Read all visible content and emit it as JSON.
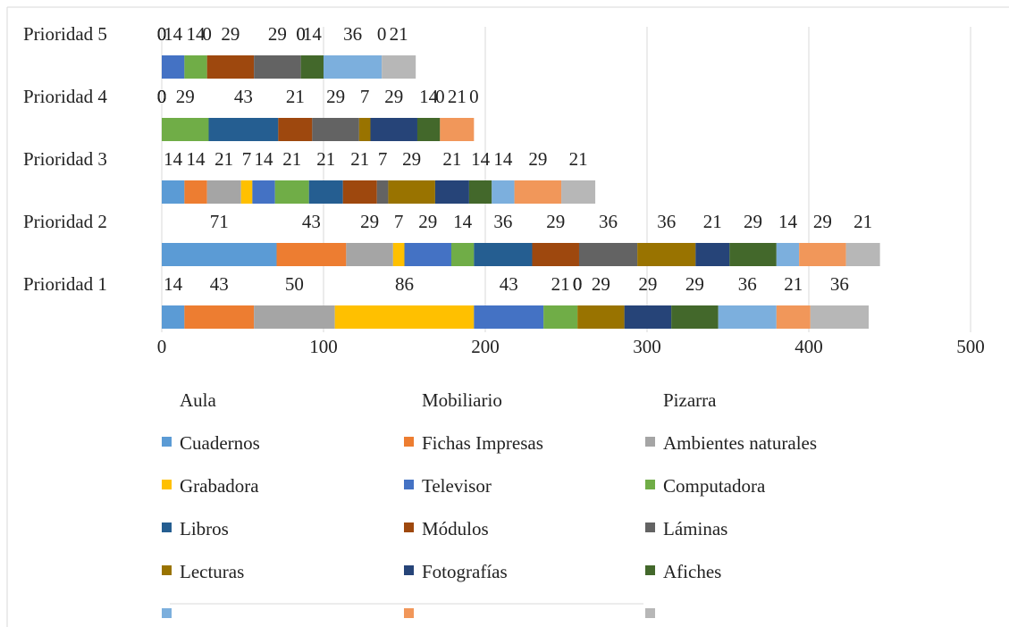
{
  "chart_data": {
    "type": "stacked_barh",
    "categories": [
      "Prioridad 1",
      "Prioridad 2",
      "Prioridad 3",
      "Prioridad 4",
      "Prioridad 5"
    ],
    "xlim": [
      0,
      500
    ],
    "xticks": [
      0,
      100,
      200,
      300,
      400,
      500
    ],
    "grid": true,
    "legend": "bottom",
    "series": [
      {
        "name": "Aula",
        "color": null,
        "values": [
          null,
          null,
          null,
          null,
          null
        ]
      },
      {
        "name": "Mobiliario",
        "color": null,
        "values": [
          null,
          null,
          null,
          null,
          null
        ]
      },
      {
        "name": "Pizarra",
        "color": null,
        "values": [
          null,
          null,
          null,
          null,
          null
        ]
      },
      {
        "name": "Cuadernos",
        "color": "#5b9bd5",
        "values": [
          14,
          71,
          14,
          0,
          0
        ]
      },
      {
        "name": "Fichas Impresas",
        "color": "#ed7d31",
        "values": [
          43,
          43,
          14,
          0,
          0
        ]
      },
      {
        "name": "Ambientes naturales",
        "color": "#a5a5a5",
        "values": [
          50,
          29,
          21,
          0,
          0
        ]
      },
      {
        "name": "Grabadora",
        "color": "#ffc000",
        "values": [
          86,
          7,
          7,
          0,
          0
        ]
      },
      {
        "name": "Televisor",
        "color": "#4472c4",
        "values": [
          43,
          29,
          14,
          0,
          14
        ]
      },
      {
        "name": "Computadora",
        "color": "#70ad47",
        "values": [
          21,
          14,
          21,
          29,
          14
        ]
      },
      {
        "name": "Libros",
        "color": "#255e91",
        "values": [
          0,
          36,
          21,
          43,
          0
        ]
      },
      {
        "name": "Módulos",
        "color": "#9e480e",
        "values": [
          0,
          29,
          21,
          21,
          29
        ]
      },
      {
        "name": "Láminas",
        "color": "#636363",
        "values": [
          0,
          36,
          7,
          29,
          29
        ]
      },
      {
        "name": "Lecturas",
        "color": "#997300",
        "values": [
          29,
          36,
          29,
          7,
          0
        ]
      },
      {
        "name": "Fotografías",
        "color": "#264478",
        "values": [
          29,
          21,
          21,
          29,
          0
        ]
      },
      {
        "name": "Afiches",
        "color": "#43682b",
        "values": [
          29,
          29,
          14,
          14,
          14
        ]
      },
      {
        "name": null,
        "color": "#7cafdd",
        "values": [
          36,
          14,
          14,
          0,
          36
        ]
      },
      {
        "name": null,
        "color": "#f1975a",
        "values": [
          21,
          29,
          29,
          21,
          0
        ]
      },
      {
        "name": null,
        "color": "#b7b7b7",
        "values": [
          36,
          21,
          21,
          0,
          21
        ]
      }
    ]
  }
}
